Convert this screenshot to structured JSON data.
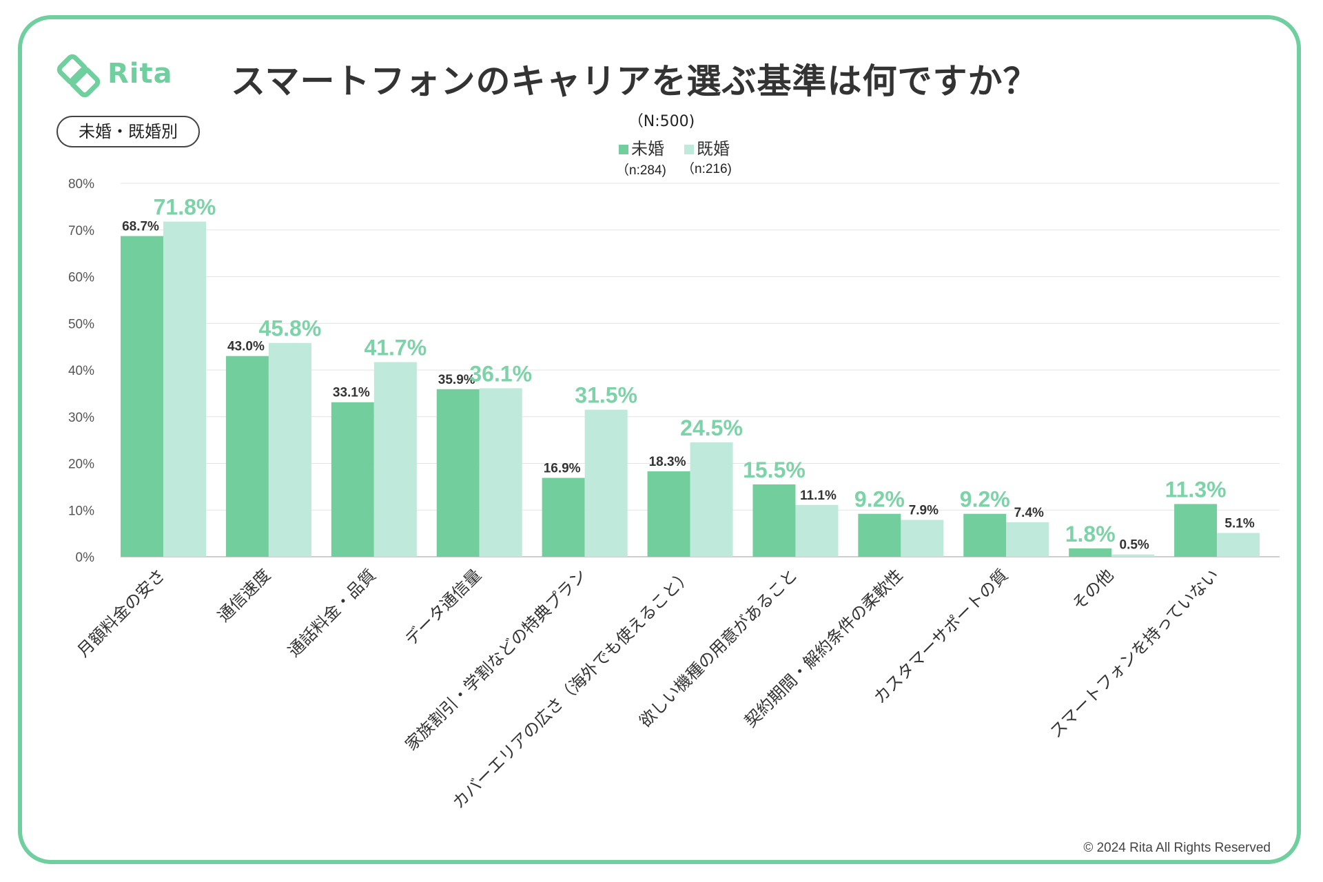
{
  "brand": {
    "name": "Rita",
    "color": "#6fcf9e"
  },
  "header": {
    "title": "スマートフォンのキャリアを選ぶ基準は何ですか？"
  },
  "segment_badge": "未婚・既婚別",
  "sample_size": "（N:500)",
  "footer": {
    "copyright": "© 2024 Rita All Rights Reserved"
  },
  "chart_data": {
    "type": "bar",
    "title": "スマートフォンのキャリアを選ぶ基準は何ですか？",
    "categories": [
      "月額料金の安さ",
      "通信速度",
      "通話料金・品質",
      "データ通信量",
      "家族割引・学割などの特典プラン",
      "カバーエリアの広さ（海外でも使えること）",
      "欲しい機種の用意があること",
      "契約期間・解約条件の柔軟性",
      "カスタマーサポートの質",
      "その他",
      "スマートフォンを持っていない"
    ],
    "series": [
      {
        "name": "未婚",
        "n_label": "（n:284)",
        "color": "#72cf9d",
        "values": [
          68.7,
          43.0,
          33.1,
          35.9,
          16.9,
          18.3,
          15.5,
          9.2,
          9.2,
          1.8,
          11.3
        ],
        "labels": [
          "68.7%",
          "43.0%",
          "33.1%",
          "35.9%",
          "16.9%",
          "18.3%",
          "15.5%",
          "9.2%",
          "9.2%",
          "1.8%",
          "11.3%"
        ]
      },
      {
        "name": "既婚",
        "n_label": "（n:216)",
        "color": "#bfe9da",
        "values": [
          71.8,
          45.8,
          41.7,
          36.1,
          31.5,
          24.5,
          11.1,
          7.9,
          7.4,
          0.5,
          5.1
        ],
        "labels": [
          "71.8%",
          "45.8%",
          "41.7%",
          "36.1%",
          "31.5%",
          "24.5%",
          "11.1%",
          "7.9%",
          "7.4%",
          "0.5%",
          "5.1%"
        ]
      }
    ],
    "y_ticks": [
      "0%",
      "10%",
      "20%",
      "30%",
      "40%",
      "50%",
      "60%",
      "70%",
      "80%"
    ],
    "ylim": [
      0,
      80
    ],
    "grid": true,
    "legend": "top-center",
    "highlight_color": "#7dd3a8"
  }
}
